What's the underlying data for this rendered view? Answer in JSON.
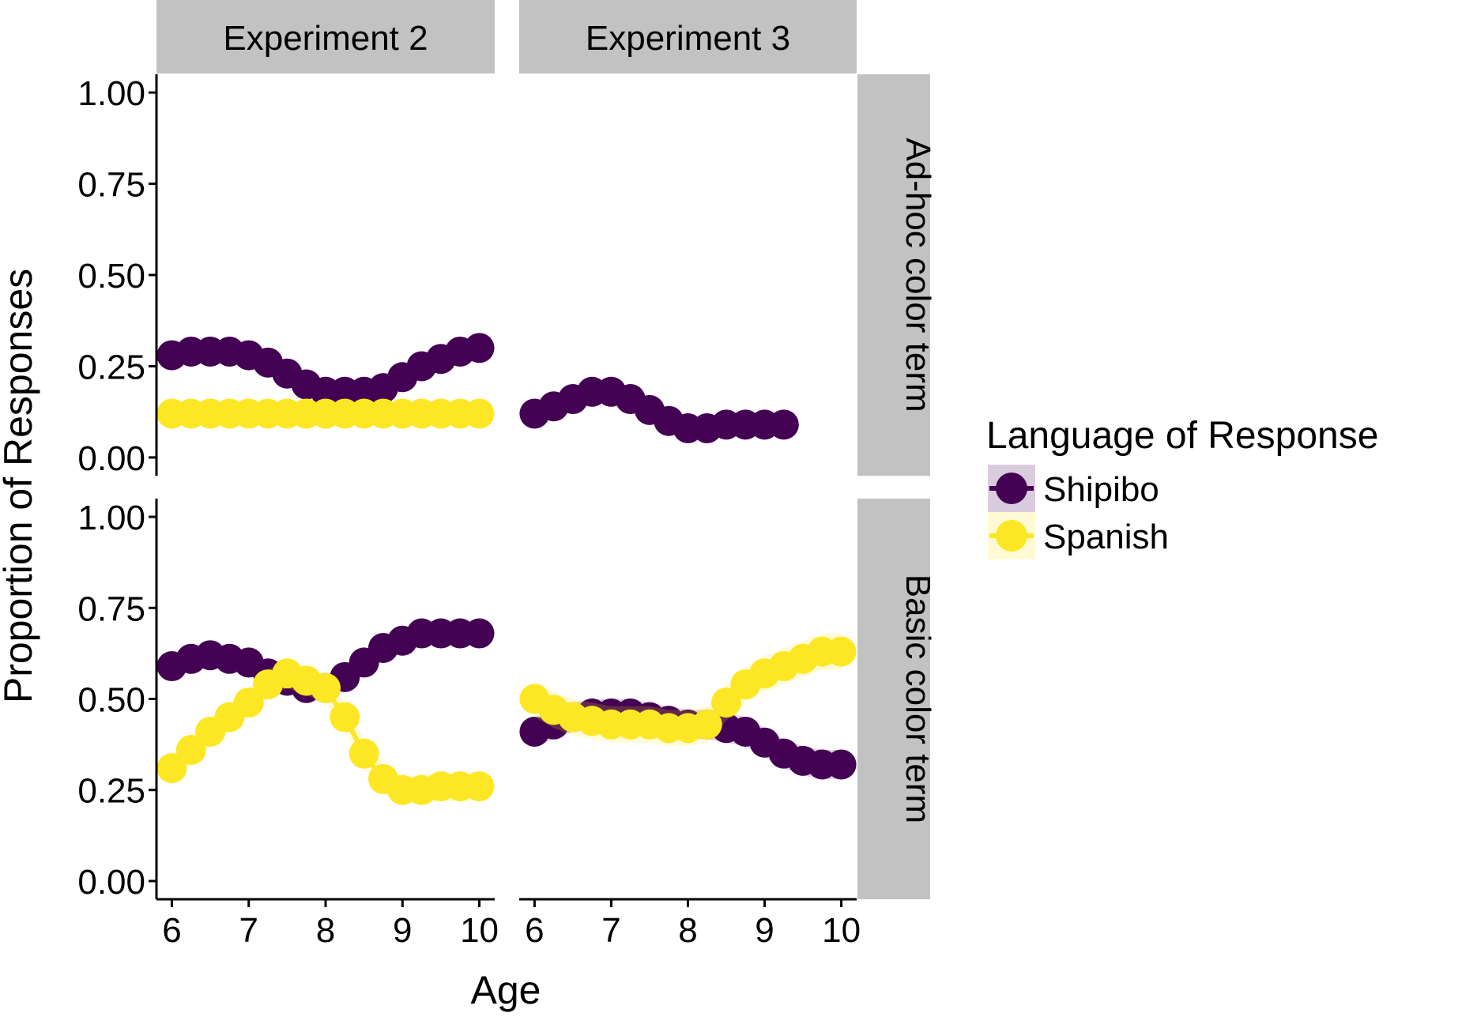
{
  "chart_data": {
    "type": "scatter",
    "title": "",
    "xlabel": "Age",
    "ylabel": "Proportion of Responses",
    "xlim": [
      5.8,
      10.2
    ],
    "ylim": [
      -0.05,
      1.05
    ],
    "x_ticks": [
      "6",
      "7",
      "8",
      "9",
      "10"
    ],
    "y_ticks": [
      "0.00",
      "0.25",
      "0.50",
      "0.75",
      "1.00"
    ],
    "column_facets": [
      "Experiment 2",
      "Experiment 3"
    ],
    "row_facets": [
      "Ad-hoc color term",
      "Basic color term"
    ],
    "legend": {
      "title": "Language of Response",
      "placement": "right",
      "entries": [
        {
          "label": "Shipibo",
          "color": "#440154"
        },
        {
          "label": "Spanish",
          "color": "#FDE725"
        }
      ]
    },
    "panels": [
      {
        "column": "Experiment 2",
        "row": "Ad-hoc color term",
        "series": [
          {
            "name": "Shipibo",
            "x": [
              6.0,
              6.25,
              6.5,
              6.75,
              7.0,
              7.25,
              7.5,
              7.75,
              8.0,
              8.25,
              8.5,
              8.75,
              9.0,
              9.25,
              9.5,
              9.75,
              10.0
            ],
            "y": [
              0.28,
              0.29,
              0.29,
              0.29,
              0.28,
              0.26,
              0.23,
              0.2,
              0.18,
              0.18,
              0.18,
              0.19,
              0.22,
              0.25,
              0.27,
              0.29,
              0.3
            ],
            "band": 0.025
          },
          {
            "name": "Spanish",
            "x": [
              6.0,
              6.25,
              6.5,
              6.75,
              7.0,
              7.25,
              7.5,
              7.75,
              8.0,
              8.25,
              8.5,
              8.75,
              9.0,
              9.25,
              9.5,
              9.75,
              10.0
            ],
            "y": [
              0.12,
              0.12,
              0.12,
              0.12,
              0.12,
              0.12,
              0.12,
              0.12,
              0.12,
              0.12,
              0.12,
              0.12,
              0.12,
              0.12,
              0.12,
              0.12,
              0.12
            ],
            "band": 0.015
          }
        ]
      },
      {
        "column": "Experiment 3",
        "row": "Ad-hoc color term",
        "series": [
          {
            "name": "Shipibo",
            "x": [
              6.0,
              6.25,
              6.5,
              6.75,
              7.0,
              7.25,
              7.5,
              7.75,
              8.0,
              8.25,
              8.5,
              8.75,
              9.0,
              9.25
            ],
            "y": [
              0.12,
              0.14,
              0.16,
              0.18,
              0.18,
              0.16,
              0.13,
              0.1,
              0.08,
              0.08,
              0.09,
              0.09,
              0.09,
              0.09
            ],
            "band": 0.015
          }
        ]
      },
      {
        "column": "Experiment 2",
        "row": "Basic color term",
        "series": [
          {
            "name": "Shipibo",
            "x": [
              6.0,
              6.25,
              6.5,
              6.75,
              7.0,
              7.25,
              7.5,
              7.75,
              8.0,
              8.25,
              8.5,
              8.75,
              9.0,
              9.25,
              9.5,
              9.75,
              10.0
            ],
            "y": [
              0.59,
              0.61,
              0.62,
              0.61,
              0.6,
              0.57,
              0.55,
              0.53,
              0.53,
              0.56,
              0.6,
              0.64,
              0.66,
              0.68,
              0.68,
              0.68,
              0.68
            ],
            "band": 0.02
          },
          {
            "name": "Spanish",
            "x": [
              6.0,
              6.25,
              6.5,
              6.75,
              7.0,
              7.25,
              7.5,
              7.75,
              8.0,
              8.25,
              8.5,
              8.75,
              9.0,
              9.25,
              9.5,
              9.75,
              10.0
            ],
            "y": [
              0.31,
              0.36,
              0.41,
              0.45,
              0.49,
              0.54,
              0.57,
              0.55,
              0.53,
              0.45,
              0.35,
              0.28,
              0.25,
              0.25,
              0.26,
              0.26,
              0.26
            ],
            "band": 0.04
          }
        ]
      },
      {
        "column": "Experiment 3",
        "row": "Basic color term",
        "series": [
          {
            "name": "Shipibo",
            "x": [
              6.0,
              6.25,
              6.5,
              6.75,
              7.0,
              7.25,
              7.5,
              7.75,
              8.0,
              8.25,
              8.5,
              8.75,
              9.0,
              9.25,
              9.5,
              9.75,
              10.0
            ],
            "y": [
              0.41,
              0.43,
              0.45,
              0.46,
              0.46,
              0.46,
              0.45,
              0.44,
              0.43,
              0.43,
              0.42,
              0.41,
              0.38,
              0.35,
              0.33,
              0.32,
              0.32
            ],
            "band": 0.04
          },
          {
            "name": "Spanish",
            "x": [
              6.0,
              6.25,
              6.5,
              6.75,
              7.0,
              7.25,
              7.5,
              7.75,
              8.0,
              8.25,
              8.5,
              8.75,
              9.0,
              9.25,
              9.5,
              9.75,
              10.0
            ],
            "y": [
              0.5,
              0.47,
              0.45,
              0.44,
              0.43,
              0.43,
              0.43,
              0.42,
              0.42,
              0.43,
              0.49,
              0.54,
              0.57,
              0.59,
              0.61,
              0.63,
              0.63
            ],
            "band": 0.05
          }
        ]
      }
    ]
  }
}
